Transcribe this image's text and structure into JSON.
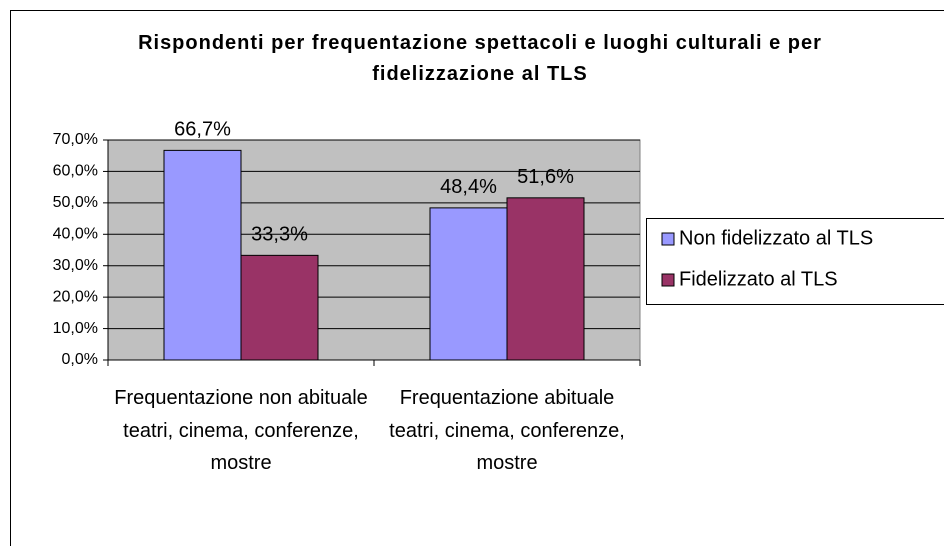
{
  "chart_data": {
    "type": "bar",
    "title": "Rispondenti per frequentazione spettacoli e luoghi culturali e per fidelizzazione al TLS",
    "categories": [
      "Frequentazione non abituale teatri, cinema, conferenze, mostre",
      "Frequentazione abituale teatri, cinema, conferenze, mostre"
    ],
    "series": [
      {
        "name": "Non fidelizzato al TLS",
        "color": "#9999ff",
        "values": [
          66.7,
          48.4
        ],
        "value_labels": [
          "66,7%",
          "48,4%"
        ]
      },
      {
        "name": "Fidelizzato al TLS",
        "color": "#993366",
        "values": [
          33.3,
          51.6
        ],
        "value_labels": [
          "33,3%",
          "51,6%"
        ]
      }
    ],
    "ylim": [
      0,
      70
    ],
    "yticks": [
      {
        "value": 0,
        "label": "0,0%"
      },
      {
        "value": 10,
        "label": "10,0%"
      },
      {
        "value": 20,
        "label": "20,0%"
      },
      {
        "value": 30,
        "label": "30,0%"
      },
      {
        "value": 40,
        "label": "40,0%"
      },
      {
        "value": 50,
        "label": "50,0%"
      },
      {
        "value": 60,
        "label": "60,0%"
      },
      {
        "value": 70,
        "label": "70,0%"
      }
    ],
    "grid": true,
    "plot_background": "#c0c0c0",
    "legend": "right"
  }
}
